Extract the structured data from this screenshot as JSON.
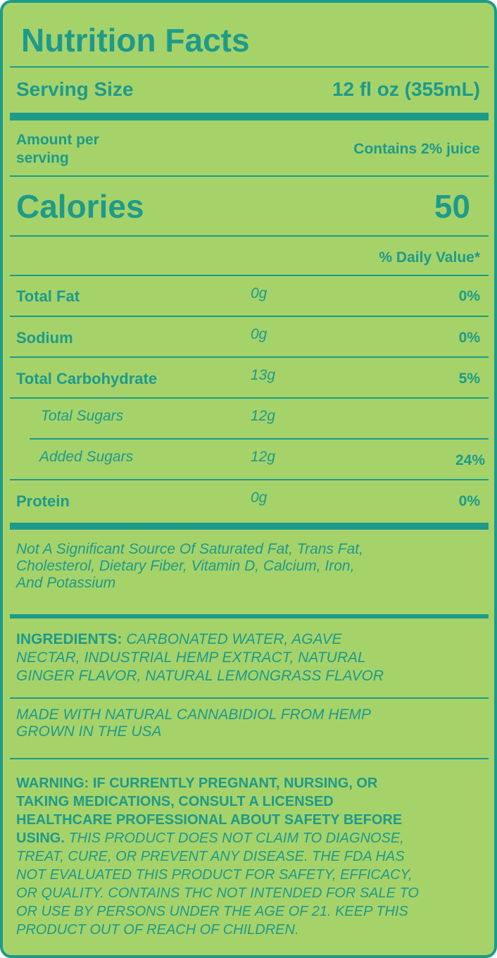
{
  "title": "Nutrition Facts",
  "serving": {
    "label": "Serving Size",
    "value": "12 fl oz (355mL)"
  },
  "amount_per_serving": [
    "Amount per",
    "serving"
  ],
  "juice_note": "Contains 2% juice",
  "calories": {
    "label": "Calories",
    "value": "50"
  },
  "daily_value_header": "% Daily Value*",
  "nutrients": [
    {
      "name": "Total Fat",
      "amount": "0g",
      "dv": "0%"
    },
    {
      "name": "Sodium",
      "amount": "0g",
      "dv": "0%"
    },
    {
      "name": "Total Carbohydrate",
      "amount": "13g",
      "dv": "5%"
    },
    {
      "name": "Total Sugars",
      "amount": "12g",
      "dv": ""
    },
    {
      "name": "Added Sugars",
      "amount": "12g",
      "dv": "24%"
    },
    {
      "name": "Protein",
      "amount": "0g",
      "dv": "0%"
    }
  ],
  "not_significant": [
    "Not A Significant Source Of Saturated Fat, Trans Fat,",
    "Cholesterol, Dietary Fiber, Vitamin D, Calcium, Iron,",
    "And Potassium"
  ],
  "ingredients": {
    "label": "INGREDIENTS:",
    "lines": [
      " CARBONATED WATER, AGAVE",
      "NECTAR, INDUSTRIAL HEMP EXTRACT, NATURAL",
      "GINGER FLAVOR, NATURAL LEMONGRASS FLAVOR"
    ]
  },
  "cbd_note": [
    "MADE WITH NATURAL CANNABIDIOL FROM HEMP",
    "GROWN IN THE USA"
  ],
  "warning": {
    "bold_lines": [
      "WARNING: IF CURRENTLY PREGNANT, NURSING, OR",
      "TAKING MEDICATIONS, CONSULT A LICENSED",
      "HEALTHCARE PROFESSIONAL ABOUT SAFETY BEFORE",
      "USING."
    ],
    "italic_lines": [
      " THIS PRODUCT DOES NOT CLAIM TO DIAGNOSE,",
      "TREAT, CURE, OR PREVENT ANY DISEASE. THE FDA HAS",
      "NOT EVALUATED THIS PRODUCT FOR SAFETY, EFFICACY,",
      "OR QUALITY. CONTAINS THC NOT INTENDED FOR SALE TO",
      "OR USE BY PERSONS UNDER THE AGE OF 21. KEEP THIS",
      "PRODUCT OUT OF REACH OF CHILDREN."
    ]
  },
  "colors": {
    "background": "#a5d36a",
    "accent": "#1e9a8a"
  }
}
